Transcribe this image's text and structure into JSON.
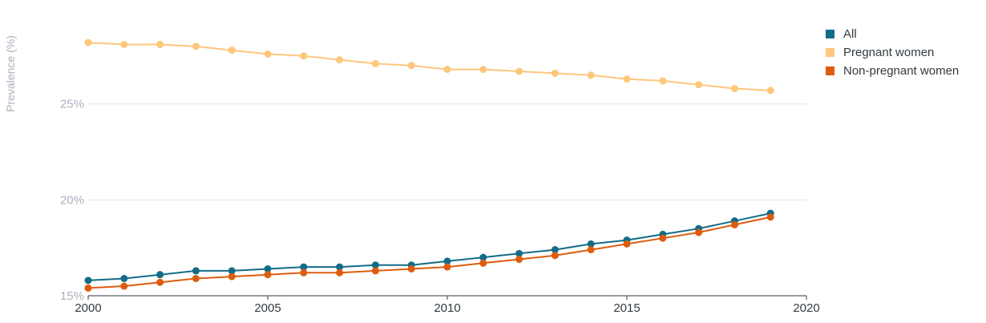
{
  "chart_data": {
    "type": "line",
    "ylabel": "Prevalence (%)",
    "xlabel": "",
    "x": [
      2000,
      2001,
      2002,
      2003,
      2004,
      2005,
      2006,
      2007,
      2008,
      2009,
      2010,
      2011,
      2012,
      2013,
      2014,
      2015,
      2016,
      2017,
      2018,
      2019
    ],
    "xlim": [
      2000,
      2020
    ],
    "ylim": [
      15,
      30
    ],
    "x_ticks": [
      2000,
      2005,
      2010,
      2015,
      2020
    ],
    "x_tick_labels": [
      "2000",
      "2005",
      "2010",
      "2015",
      "2020"
    ],
    "y_ticks": [
      15,
      20,
      25
    ],
    "y_tick_labels": [
      "15%",
      "20%",
      "25%"
    ],
    "grid": "horizontal",
    "legend_position": "top-right",
    "series": [
      {
        "name": "All",
        "color": "#136c87",
        "values": [
          15.8,
          15.9,
          16.1,
          16.3,
          16.3,
          16.4,
          16.5,
          16.5,
          16.6,
          16.6,
          16.8,
          17.0,
          17.2,
          17.4,
          17.7,
          17.9,
          18.2,
          18.5,
          18.9,
          19.3
        ]
      },
      {
        "name": "Pregnant women",
        "color": "#fec77c",
        "values": [
          28.2,
          28.1,
          28.1,
          28.0,
          27.8,
          27.6,
          27.5,
          27.3,
          27.1,
          27.0,
          26.8,
          26.8,
          26.7,
          26.6,
          26.5,
          26.3,
          26.2,
          26.0,
          25.8,
          25.7
        ]
      },
      {
        "name": "Non-pregnant women",
        "color": "#de5c0d",
        "values": [
          15.4,
          15.5,
          15.7,
          15.9,
          16.0,
          16.1,
          16.2,
          16.2,
          16.3,
          16.4,
          16.5,
          16.7,
          16.9,
          17.1,
          17.4,
          17.7,
          18.0,
          18.3,
          18.7,
          19.1
        ]
      }
    ]
  }
}
